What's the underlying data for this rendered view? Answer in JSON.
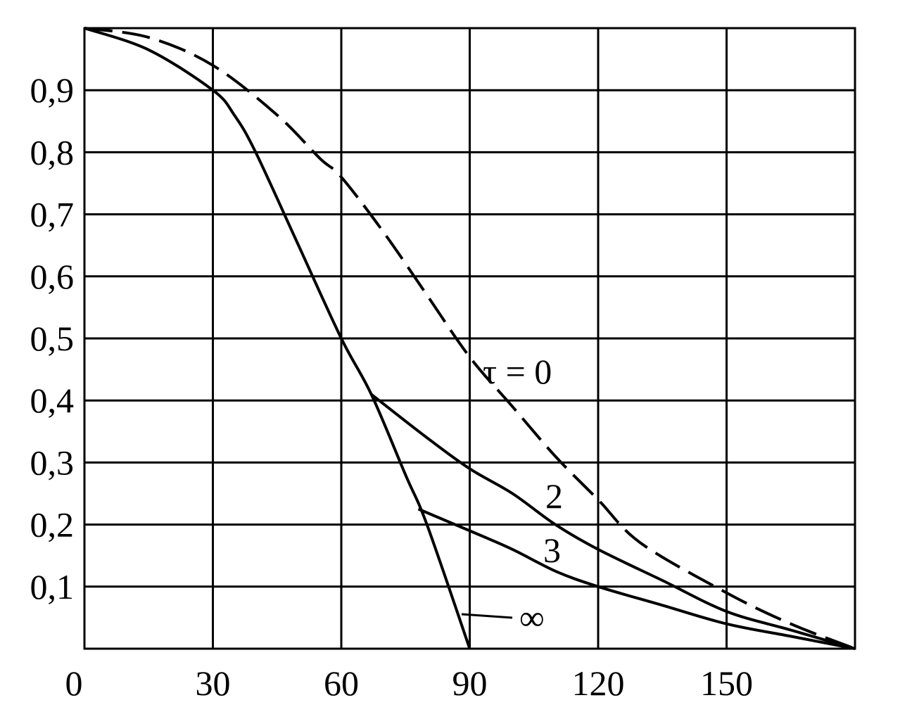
{
  "chart_data": {
    "type": "line",
    "title": "",
    "xlabel": "",
    "ylabel": "",
    "xlim": [
      0,
      180
    ],
    "ylim": [
      0,
      1.0
    ],
    "grid": true,
    "x_ticks": [
      0,
      30,
      60,
      90,
      120,
      150
    ],
    "x_tick_labels": [
      "0",
      "30",
      "60",
      "90",
      "120",
      "150"
    ],
    "y_ticks": [
      0.1,
      0.2,
      0.3,
      0.4,
      0.5,
      0.6,
      0.7,
      0.8,
      0.9
    ],
    "y_tick_labels": [
      "0,1",
      "0,2",
      "0,3",
      "0,4",
      "0,5",
      "0,6",
      "0,7",
      "0,8",
      "0,9"
    ],
    "series": [
      {
        "name": "τ = 0",
        "style": "dashed",
        "x": [
          0,
          15,
          30,
          45,
          55,
          60,
          70,
          80,
          90,
          100,
          110,
          120,
          130,
          150,
          165,
          180
        ],
        "y": [
          1.0,
          0.985,
          0.94,
          0.86,
          0.79,
          0.76,
          0.67,
          0.57,
          0.47,
          0.39,
          0.31,
          0.24,
          0.17,
          0.09,
          0.04,
          0.0
        ]
      },
      {
        "name": "∞",
        "style": "solid",
        "x": [
          0,
          15,
          30,
          35,
          40,
          50,
          60,
          67,
          75,
          80,
          90
        ],
        "y": [
          1.0,
          0.965,
          0.9,
          0.86,
          0.8,
          0.65,
          0.5,
          0.41,
          0.28,
          0.2,
          0.0
        ]
      },
      {
        "name": "2",
        "style": "solid",
        "x": [
          67,
          80,
          90,
          100,
          110,
          120,
          135,
          150,
          165,
          180
        ],
        "y": [
          0.41,
          0.34,
          0.29,
          0.25,
          0.2,
          0.16,
          0.11,
          0.06,
          0.03,
          0.0
        ]
      },
      {
        "name": "3",
        "style": "solid",
        "x": [
          78,
          90,
          100,
          110,
          120,
          135,
          150,
          165,
          180
        ],
        "y": [
          0.225,
          0.19,
          0.16,
          0.125,
          0.1,
          0.07,
          0.04,
          0.02,
          0.0
        ]
      }
    ],
    "annotations": [
      {
        "text": "τ = 0",
        "series": 0
      },
      {
        "text": "2",
        "series": 2
      },
      {
        "text": "3",
        "series": 3
      },
      {
        "text": "∞",
        "series": 1
      }
    ]
  }
}
